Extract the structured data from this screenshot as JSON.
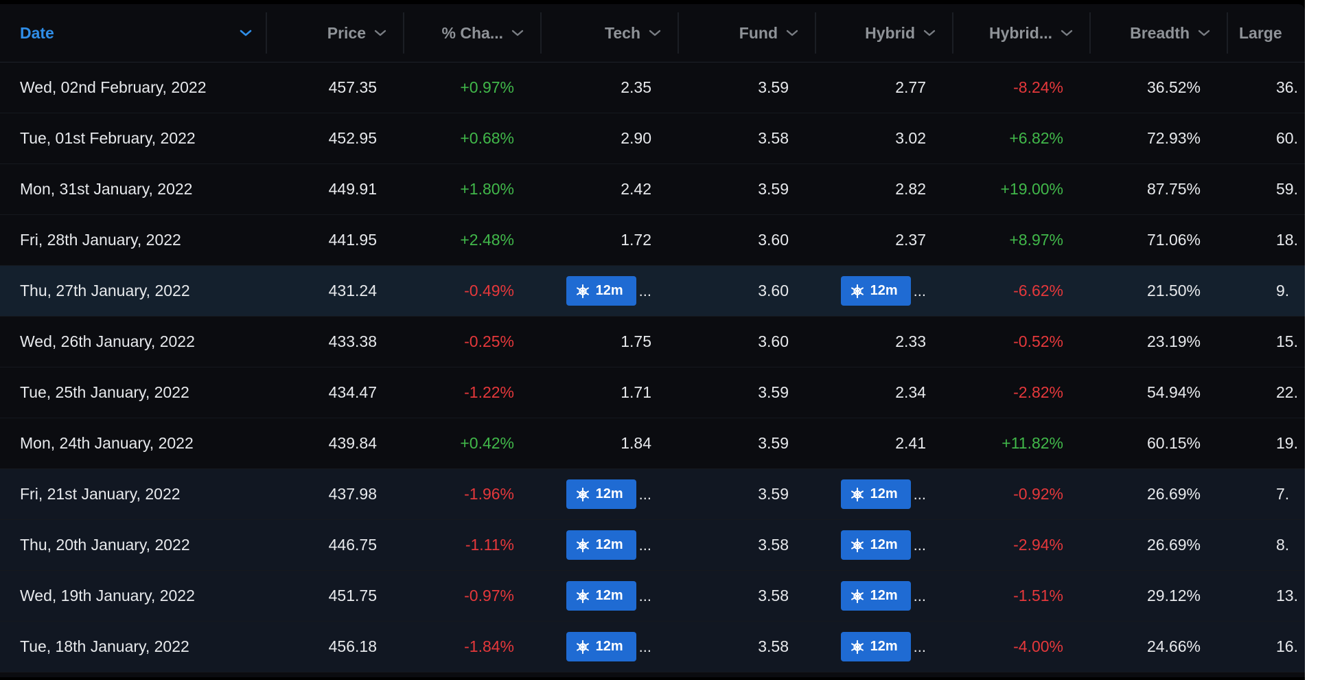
{
  "columns": {
    "date": "Date",
    "price": "Price",
    "pct_change": "% Cha...",
    "tech": "Tech",
    "fund": "Fund",
    "hybrid": "Hybrid",
    "hybrid2": "Hybrid...",
    "breadth": "Breadth",
    "large": "Large"
  },
  "loading_badge": {
    "label": "12m",
    "icon": "snowflake-icon",
    "ellipsis": "..."
  },
  "colors": {
    "accent": "#2f8ee8",
    "positive": "#41b84a",
    "negative": "#e5383b",
    "badge": "#1f6bd3"
  },
  "rows": [
    {
      "date": "Wed, 02nd February, 2022",
      "price": "457.35",
      "pct": "+0.97%",
      "tech": "2.35",
      "fund": "3.59",
      "hybrid": "2.77",
      "hybrid2": "-8.24%",
      "breadth": "36.52%",
      "large": "36."
    },
    {
      "date": "Tue, 01st February, 2022",
      "price": "452.95",
      "pct": "+0.68%",
      "tech": "2.90",
      "fund": "3.58",
      "hybrid": "3.02",
      "hybrid2": "+6.82%",
      "breadth": "72.93%",
      "large": "60."
    },
    {
      "date": "Mon, 31st January, 2022",
      "price": "449.91",
      "pct": "+1.80%",
      "tech": "2.42",
      "fund": "3.59",
      "hybrid": "2.82",
      "hybrid2": "+19.00%",
      "breadth": "87.75%",
      "large": "59."
    },
    {
      "date": "Fri, 28th January, 2022",
      "price": "441.95",
      "pct": "+2.48%",
      "tech": "1.72",
      "fund": "3.60",
      "hybrid": "2.37",
      "hybrid2": "+8.97%",
      "breadth": "71.06%",
      "large": "18."
    },
    {
      "date": "Thu, 27th January, 2022",
      "price": "431.24",
      "pct": "-0.49%",
      "tech": "12m",
      "fund": "3.60",
      "hybrid": "12m",
      "hybrid2": "-6.62%",
      "breadth": "21.50%",
      "large": "9."
    },
    {
      "date": "Wed, 26th January, 2022",
      "price": "433.38",
      "pct": "-0.25%",
      "tech": "1.75",
      "fund": "3.60",
      "hybrid": "2.33",
      "hybrid2": "-0.52%",
      "breadth": "23.19%",
      "large": "15."
    },
    {
      "date": "Tue, 25th January, 2022",
      "price": "434.47",
      "pct": "-1.22%",
      "tech": "1.71",
      "fund": "3.59",
      "hybrid": "2.34",
      "hybrid2": "-2.82%",
      "breadth": "54.94%",
      "large": "22."
    },
    {
      "date": "Mon, 24th January, 2022",
      "price": "439.84",
      "pct": "+0.42%",
      "tech": "1.84",
      "fund": "3.59",
      "hybrid": "2.41",
      "hybrid2": "+11.82%",
      "breadth": "60.15%",
      "large": "19."
    },
    {
      "date": "Fri, 21st January, 2022",
      "price": "437.98",
      "pct": "-1.96%",
      "tech": "12m",
      "fund": "3.59",
      "hybrid": "12m",
      "hybrid2": "-0.92%",
      "breadth": "26.69%",
      "large": "7."
    },
    {
      "date": "Thu, 20th January, 2022",
      "price": "446.75",
      "pct": "-1.11%",
      "tech": "12m",
      "fund": "3.58",
      "hybrid": "12m",
      "hybrid2": "-2.94%",
      "breadth": "26.69%",
      "large": "8."
    },
    {
      "date": "Wed, 19th January, 2022",
      "price": "451.75",
      "pct": "-0.97%",
      "tech": "12m",
      "fund": "3.58",
      "hybrid": "12m",
      "hybrid2": "-1.51%",
      "breadth": "29.12%",
      "large": "13."
    },
    {
      "date": "Tue, 18th January, 2022",
      "price": "456.18",
      "pct": "-1.84%",
      "tech": "12m",
      "fund": "3.58",
      "hybrid": "12m",
      "hybrid2": "-4.00%",
      "breadth": "24.66%",
      "large": "16."
    }
  ]
}
